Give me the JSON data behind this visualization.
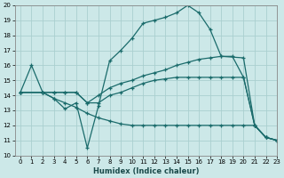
{
  "xlabel": "Humidex (Indice chaleur)",
  "bg_color": "#cce8e8",
  "line_color": "#1a6b6b",
  "grid_color": "#aacfcf",
  "ylim": [
    10,
    20
  ],
  "xlim": [
    -0.5,
    23
  ],
  "yticks": [
    10,
    11,
    12,
    13,
    14,
    15,
    16,
    17,
    18,
    19,
    20
  ],
  "xticks": [
    0,
    1,
    2,
    3,
    4,
    5,
    6,
    7,
    8,
    9,
    10,
    11,
    12,
    13,
    14,
    15,
    16,
    17,
    18,
    19,
    20,
    21,
    22,
    23
  ],
  "line1_x": [
    0,
    1,
    2,
    3,
    4,
    5,
    6,
    7,
    8,
    9,
    10,
    11,
    12,
    13,
    14,
    15,
    16,
    17,
    18,
    19,
    20,
    21,
    22,
    23
  ],
  "line1_y": [
    14.2,
    16.0,
    14.2,
    13.8,
    13.1,
    13.5,
    10.5,
    13.3,
    16.3,
    17.0,
    17.8,
    18.8,
    19.0,
    19.2,
    19.5,
    20.0,
    19.5,
    18.4,
    16.6,
    16.6,
    15.2,
    12.0,
    11.2,
    11.0
  ],
  "line2_x": [
    0,
    2,
    3,
    4,
    5,
    6,
    7,
    8,
    9,
    10,
    11,
    12,
    13,
    14,
    15,
    16,
    17,
    18,
    20,
    21,
    22,
    23
  ],
  "line2_y": [
    14.2,
    14.2,
    14.2,
    14.2,
    14.2,
    13.5,
    14.0,
    14.5,
    14.8,
    15.0,
    15.3,
    15.5,
    15.7,
    16.0,
    16.2,
    16.4,
    16.5,
    16.6,
    16.5,
    12.0,
    11.2,
    11.0
  ],
  "line3_x": [
    0,
    2,
    3,
    4,
    5,
    6,
    7,
    8,
    9,
    10,
    11,
    12,
    13,
    14,
    15,
    16,
    17,
    18,
    19,
    20,
    21,
    22,
    23
  ],
  "line3_y": [
    14.2,
    14.2,
    14.2,
    14.2,
    14.2,
    13.5,
    13.5,
    14.0,
    14.2,
    14.5,
    14.8,
    15.0,
    15.1,
    15.2,
    15.2,
    15.2,
    15.2,
    15.2,
    15.2,
    15.2,
    12.0,
    11.2,
    11.0
  ],
  "line4_x": [
    0,
    2,
    3,
    4,
    5,
    6,
    7,
    8,
    9,
    10,
    11,
    12,
    13,
    14,
    15,
    16,
    17,
    18,
    19,
    20,
    21,
    22,
    23
  ],
  "line4_y": [
    14.2,
    14.2,
    13.8,
    13.5,
    13.2,
    12.8,
    12.5,
    12.3,
    12.1,
    12.0,
    12.0,
    12.0,
    12.0,
    12.0,
    12.0,
    12.0,
    12.0,
    12.0,
    12.0,
    12.0,
    12.0,
    11.2,
    11.0
  ]
}
